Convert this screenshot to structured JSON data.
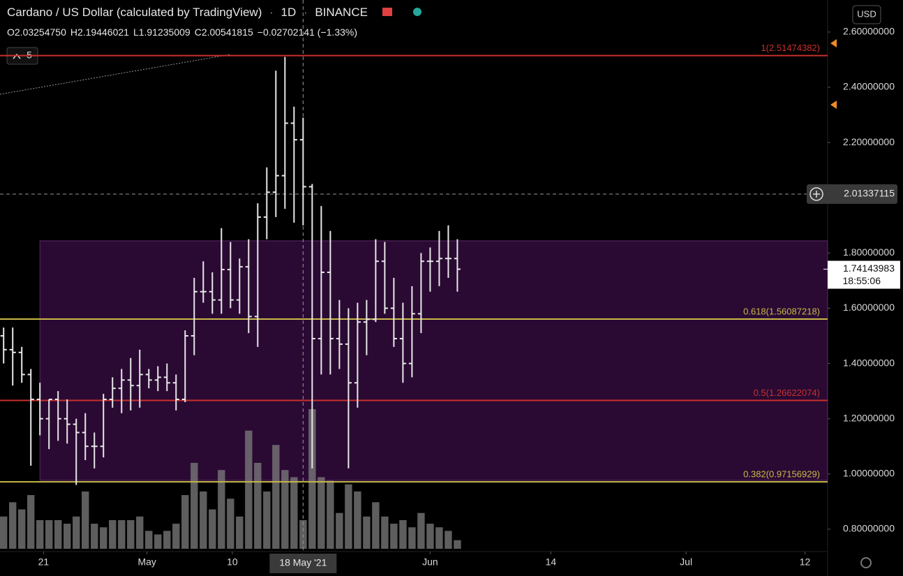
{
  "chart_data": {
    "type": "ohlc",
    "title": "Cardano / US Dollar (calculated by TradingView)",
    "interval": "1D",
    "exchange": "BINANCE",
    "legend_values": [
      "O2.03254750",
      "H2.19446021",
      "L1.91235009",
      "C2.00541815",
      "−0.02702141 (−1.33%)"
    ],
    "currency": "USD",
    "indicator_count": "5",
    "color": "#e8e8e8",
    "volume_color": "#7d7d7d",
    "x": [
      0,
      1,
      2,
      3,
      4,
      5,
      6,
      7,
      8,
      9,
      10,
      11,
      12,
      13,
      14,
      15,
      16,
      17,
      18,
      19,
      20,
      21,
      22,
      23,
      24,
      25,
      26,
      27,
      28,
      29,
      30,
      31,
      32,
      33,
      34,
      35,
      36,
      37,
      38,
      39,
      40,
      41,
      42,
      43,
      44,
      45,
      46,
      47,
      48,
      49,
      50
    ],
    "open": [
      1.5,
      1.45,
      1.44,
      1.36,
      1.27,
      1.2,
      1.27,
      1.2,
      1.18,
      1.15,
      1.1,
      1.1,
      1.27,
      1.31,
      1.34,
      1.32,
      1.36,
      1.34,
      1.35,
      1.33,
      1.27,
      1.5,
      1.66,
      1.66,
      1.63,
      1.74,
      1.63,
      1.75,
      1.57,
      1.93,
      2.02,
      2.08,
      2.27,
      2.21,
      2.04,
      1.49,
      1.73,
      1.49,
      1.47,
      1.33,
      1.55,
      1.56,
      1.77,
      1.6,
      1.49,
      1.4,
      1.58,
      1.77,
      1.77,
      1.78,
      1.78
    ],
    "high": [
      1.53,
      1.53,
      1.46,
      1.38,
      1.33,
      1.27,
      1.3,
      1.27,
      1.2,
      1.22,
      1.15,
      1.29,
      1.35,
      1.38,
      1.42,
      1.45,
      1.38,
      1.39,
      1.4,
      1.36,
      1.52,
      1.71,
      1.77,
      1.73,
      1.89,
      1.84,
      1.78,
      1.85,
      1.98,
      2.11,
      2.46,
      2.51,
      2.33,
      2.29,
      2.05,
      1.97,
      1.88,
      1.63,
      1.6,
      1.62,
      1.63,
      1.85,
      1.84,
      1.71,
      1.62,
      1.68,
      1.8,
      1.82,
      1.88,
      1.9,
      1.85
    ],
    "low": [
      1.4,
      1.32,
      1.33,
      1.03,
      1.14,
      1.09,
      1.12,
      1.11,
      0.96,
      1.05,
      1.02,
      1.06,
      1.24,
      1.22,
      1.23,
      1.24,
      1.31,
      1.3,
      1.3,
      1.23,
      1.26,
      1.43,
      1.62,
      1.58,
      1.58,
      1.6,
      1.58,
      1.51,
      1.46,
      1.85,
      1.93,
      1.96,
      1.91,
      1.9,
      1.02,
      1.36,
      1.36,
      1.38,
      1.02,
      1.24,
      1.43,
      1.55,
      1.58,
      1.46,
      1.33,
      1.35,
      1.51,
      1.66,
      1.68,
      1.71,
      1.66
    ],
    "close": [
      1.45,
      1.44,
      1.36,
      1.27,
      1.2,
      1.27,
      1.2,
      1.18,
      1.15,
      1.1,
      1.1,
      1.27,
      1.31,
      1.34,
      1.32,
      1.36,
      1.34,
      1.35,
      1.33,
      1.27,
      1.5,
      1.66,
      1.66,
      1.63,
      1.74,
      1.63,
      1.75,
      1.57,
      1.93,
      2.02,
      2.08,
      2.27,
      2.21,
      2.04,
      1.49,
      1.73,
      1.49,
      1.47,
      1.33,
      1.55,
      1.56,
      1.77,
      1.6,
      1.49,
      1.4,
      1.58,
      1.77,
      1.77,
      1.78,
      1.78,
      1.74143983
    ],
    "volume": [
      45,
      65,
      55,
      75,
      40,
      40,
      40,
      35,
      45,
      80,
      35,
      30,
      40,
      40,
      40,
      45,
      25,
      20,
      25,
      35,
      75,
      120,
      80,
      55,
      110,
      70,
      45,
      165,
      120,
      80,
      145,
      110,
      100,
      40,
      195,
      100,
      95,
      50,
      90,
      80,
      45,
      65,
      45,
      35,
      40,
      30,
      50,
      35,
      30,
      25,
      12
    ],
    "xlim": [
      -0.4,
      90.8
    ],
    "ylim": [
      0.719,
      2.716
    ],
    "xticks": [
      {
        "value": 4.4,
        "label": "21"
      },
      {
        "value": 15.8,
        "label": "May"
      },
      {
        "value": 25.2,
        "label": "10"
      },
      {
        "value": 47,
        "label": "Jun"
      },
      {
        "value": 60.3,
        "label": "14"
      },
      {
        "value": 75.2,
        "label": "Jul"
      },
      {
        "value": 88.3,
        "label": "12"
      }
    ],
    "yticks": [
      {
        "value": 2.6,
        "label": "2.60000000"
      },
      {
        "value": 2.4,
        "label": "2.40000000"
      },
      {
        "value": 2.2,
        "label": "2.20000000"
      },
      {
        "value": 1.8,
        "label": "1.80000000"
      },
      {
        "value": 1.6,
        "label": "1.60000000"
      },
      {
        "value": 1.4,
        "label": "1.40000000"
      },
      {
        "value": 1.2,
        "label": "1.20000000"
      },
      {
        "value": 1.0,
        "label": "1.00000000"
      },
      {
        "value": 0.8,
        "label": "0.80000000"
      }
    ],
    "fib_levels": [
      {
        "label": "1(2.51474382)",
        "value": 2.51474382,
        "color": "#c9302c"
      },
      {
        "label": "0.618(1.56087218)",
        "value": 1.56087218,
        "color": "#c9b84a"
      },
      {
        "label": "0.5(1.26622074)",
        "value": 1.26622074,
        "color": "#c9302c"
      },
      {
        "label": "0.382(0.97156929)",
        "value": 0.97156929,
        "color": "#c9b84a"
      }
    ],
    "box": {
      "x0": 4,
      "top": 1.844,
      "bottom": 0.977,
      "color": "#2a0a33",
      "border": "#5a2a6a"
    },
    "crosshair": {
      "x": 33,
      "x_label": "18 May '21",
      "y": 2.01337115,
      "y_label": "2.01337115"
    },
    "last_price": {
      "value": 1.74143983,
      "label": "1.74143983",
      "countdown": "18:55:06"
    }
  }
}
